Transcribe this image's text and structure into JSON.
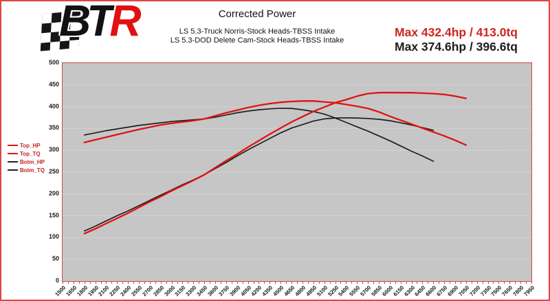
{
  "window": {
    "bg": "#ffffff",
    "border_color": "#e04545"
  },
  "logo": {
    "name": "BTR",
    "text_black": "BT",
    "text_red": "R",
    "red": "#e01212"
  },
  "header": {
    "title": "Corrected Power",
    "subtitle_line1": "LS 5.3-Truck Norris-Stock Heads-TBSS Intake",
    "subtitle_line2": "LS 5.3-DOD Delete Cam-Stock Heads-TBSS Intake",
    "max_top": "Max 432.4hp / 413.0tq",
    "max_bottom": "Max 374.6hp / 396.6tq",
    "max_top_color": "#cd2420",
    "max_bottom_color": "#1c1c1c"
  },
  "legend": {
    "position": "left-middle",
    "text_color": "#c42222",
    "entries": [
      {
        "label": "Top_HP",
        "color": "#e01212"
      },
      {
        "label": "Top_TQ",
        "color": "#e01212"
      },
      {
        "label": "Botm_HP",
        "color": "#1f1f1f"
      },
      {
        "label": "Botm_TQ",
        "color": "#1f1f1f"
      }
    ]
  },
  "chart_data": {
    "type": "line",
    "title": "Corrected Power",
    "xlabel": "",
    "ylabel": "",
    "grid": true,
    "plot_bg": "#c6c6c6",
    "grid_color": "#dedede",
    "frame_color": "#c54848",
    "legend_position": "left",
    "x_axis": {
      "min": 1500,
      "max": 7950,
      "step": 150,
      "minor_step": 75,
      "ticks": [
        1500,
        1650,
        1800,
        1950,
        2100,
        2250,
        2400,
        2550,
        2700,
        2850,
        3000,
        3150,
        3300,
        3450,
        3600,
        3750,
        3900,
        4050,
        4200,
        4350,
        4500,
        4650,
        4800,
        4950,
        5100,
        5250,
        5400,
        5550,
        5700,
        5850,
        6000,
        6150,
        6300,
        6450,
        6600,
        6750,
        6900,
        7050,
        7200,
        7350,
        7500,
        7650,
        7800,
        7950
      ]
    },
    "y_axis": {
      "min": 0,
      "max": 500,
      "step": 50,
      "ticks": [
        0,
        50,
        100,
        150,
        200,
        250,
        300,
        350,
        400,
        450,
        500
      ]
    },
    "series": [
      {
        "name": "Botm_TQ",
        "color": "#1f1f1f",
        "width": 1.7,
        "max_label": 396.6,
        "x": [
          1800,
          1950,
          2100,
          2250,
          2400,
          2550,
          2700,
          2850,
          3000,
          3150,
          3300,
          3450,
          3600,
          3750,
          3900,
          4050,
          4200,
          4350,
          4500,
          4650,
          4800,
          4950,
          5100,
          5250,
          5400,
          5550,
          5700,
          5850,
          6000,
          6150,
          6300,
          6450,
          6600
        ],
        "values": [
          335,
          340,
          345,
          349,
          353,
          357,
          360,
          363,
          366,
          368,
          370,
          372,
          376,
          381,
          386,
          390,
          393,
          395,
          396.6,
          396,
          393,
          389,
          383,
          374,
          364,
          354,
          344,
          333,
          322,
          310,
          298,
          287,
          275
        ]
      },
      {
        "name": "Botm_HP",
        "color": "#1f1f1f",
        "width": 1.7,
        "max_label": 374.6,
        "x": [
          1800,
          1950,
          2100,
          2250,
          2400,
          2550,
          2700,
          2850,
          3000,
          3150,
          3300,
          3450,
          3600,
          3750,
          3900,
          4050,
          4200,
          4350,
          4500,
          4650,
          4800,
          4950,
          5100,
          5250,
          5400,
          5550,
          5700,
          5850,
          6000,
          6150,
          6300,
          6450,
          6600
        ],
        "values": [
          115,
          126,
          138,
          150,
          161,
          173,
          185,
          197,
          209,
          221,
          232,
          244,
          258,
          272,
          287,
          301,
          314,
          327,
          340,
          351,
          359,
          367,
          372,
          374,
          374.6,
          374,
          373,
          371,
          368,
          363,
          358,
          352,
          346
        ]
      },
      {
        "name": "Top_TQ",
        "color": "#e01212",
        "width": 2.3,
        "max_label": 413.0,
        "x": [
          1800,
          1950,
          2100,
          2250,
          2400,
          2550,
          2700,
          2850,
          3000,
          3150,
          3300,
          3450,
          3600,
          3750,
          3900,
          4050,
          4200,
          4350,
          4500,
          4650,
          4800,
          4950,
          5100,
          5250,
          5400,
          5550,
          5700,
          5850,
          6000,
          6150,
          6300,
          6450,
          6600,
          6750,
          6900,
          7050
        ],
        "values": [
          318,
          324,
          330,
          336,
          342,
          348,
          353,
          358,
          362,
          365,
          368,
          372,
          379,
          386,
          392,
          398,
          403,
          407,
          410,
          412,
          413,
          413,
          411,
          409,
          405,
          401,
          396,
          388,
          378,
          369,
          360,
          351,
          342,
          333,
          323,
          312
        ]
      },
      {
        "name": "Top_HP",
        "color": "#e01212",
        "width": 2.3,
        "max_label": 432.4,
        "x": [
          1800,
          1950,
          2100,
          2250,
          2400,
          2550,
          2700,
          2850,
          3000,
          3150,
          3300,
          3450,
          3600,
          3750,
          3900,
          4050,
          4200,
          4350,
          4500,
          4650,
          4800,
          4950,
          5100,
          5250,
          5400,
          5550,
          5700,
          5850,
          6000,
          6150,
          6300,
          6450,
          6600,
          6750,
          6900,
          7050
        ],
        "values": [
          109,
          120,
          132,
          144,
          156,
          169,
          182,
          194,
          207,
          219,
          231,
          244,
          260,
          276,
          291,
          307,
          322,
          337,
          351,
          365,
          377,
          389,
          399,
          409,
          416,
          424,
          430,
          432,
          432.4,
          432,
          432,
          431,
          430,
          428,
          424,
          419
        ]
      }
    ]
  }
}
